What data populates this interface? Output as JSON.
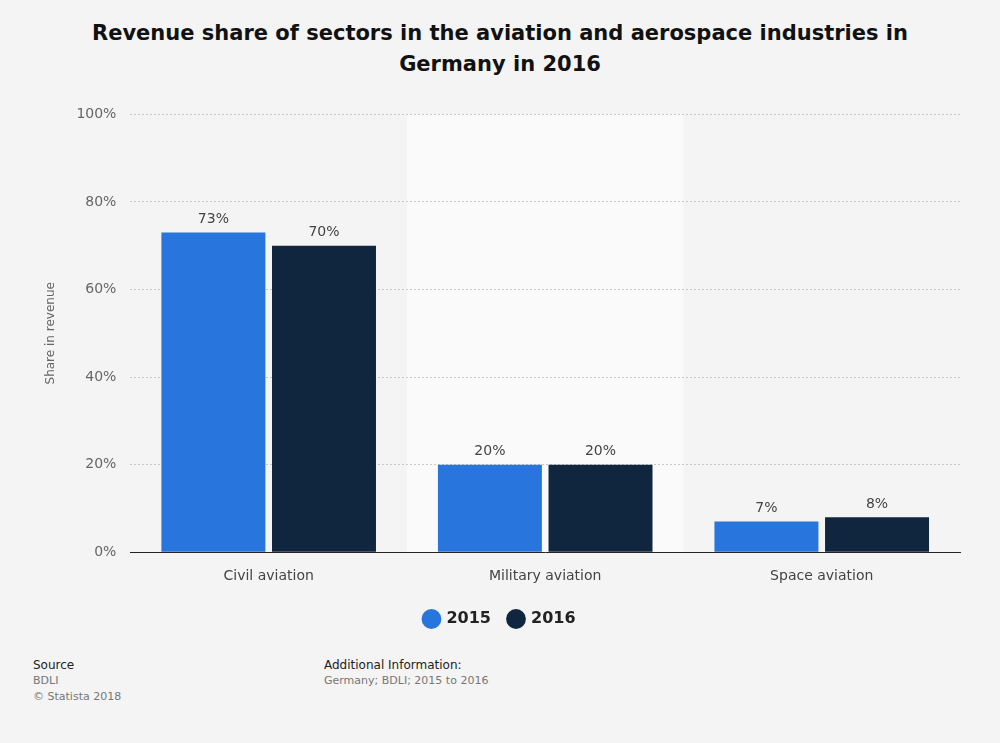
{
  "chart_data": {
    "type": "bar",
    "title": "Revenue share of sectors in the aviation and aerospace industries in Germany in 2016",
    "y_label": "Share in revenue",
    "categories": [
      "Civil aviation",
      "Military aviation",
      "Space aviation"
    ],
    "series": [
      {
        "name": "2015",
        "color": "#2775dd",
        "values": [
          73,
          20,
          7
        ],
        "value_labels": [
          "73%",
          "20%",
          "7%"
        ]
      },
      {
        "name": "2016",
        "color": "#10263f",
        "values": [
          70,
          20,
          8
        ],
        "value_labels": [
          "70%",
          "20%",
          "8%"
        ]
      }
    ],
    "ylim": [
      0,
      100
    ],
    "yticks": [
      {
        "value": 0,
        "label": "0%"
      },
      {
        "value": 20,
        "label": "20%"
      },
      {
        "value": 40,
        "label": "40%"
      },
      {
        "value": 60,
        "label": "60%"
      },
      {
        "value": 80,
        "label": "80%"
      },
      {
        "value": 100,
        "label": "100%"
      }
    ],
    "grid": true,
    "legend": "bottom",
    "data_labels": true,
    "source": {
      "heading": "Source",
      "lines": [
        "BDLI",
        "© Statista 2018"
      ]
    },
    "additional_info": {
      "heading": "Additional Information:",
      "lines": [
        "Germany; BDLI; 2015 to 2016"
      ]
    }
  }
}
